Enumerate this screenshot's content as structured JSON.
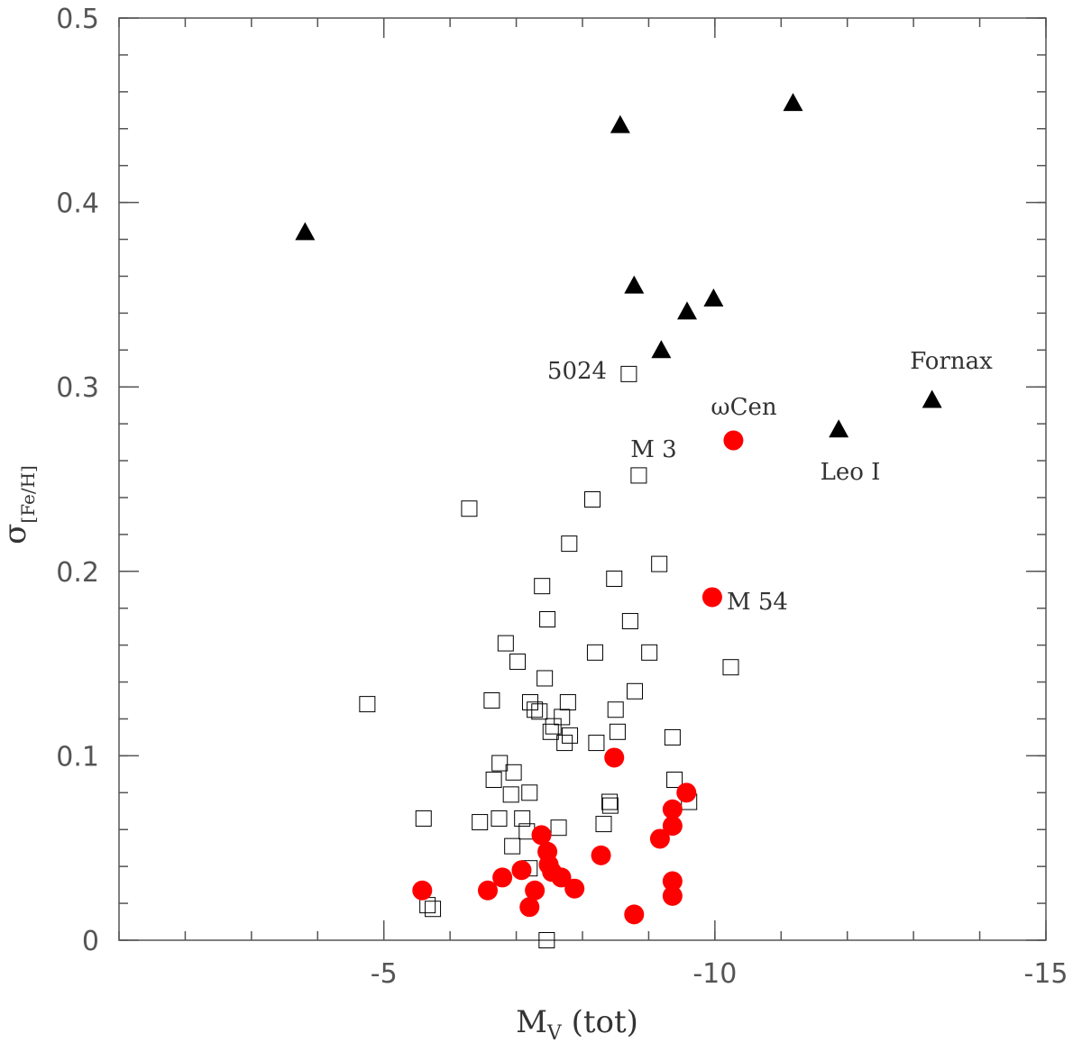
{
  "chart_data": {
    "type": "scatter",
    "x_label": [
      "M",
      "V",
      " (tot)"
    ],
    "y_label": [
      "σ",
      "[Fe/H]"
    ],
    "xlim": [
      -1,
      -15
    ],
    "ylim": [
      0,
      0.5
    ],
    "xticks": [
      -5,
      -10,
      -15
    ],
    "yticks": [
      0,
      0.1,
      0.2,
      0.3,
      0.4,
      0.5
    ],
    "series": [
      {
        "marker": "triangle",
        "color": "#000000",
        "x": [
          -3.81,
          -8.57,
          -11.18,
          -8.78,
          -9.98,
          -9.58,
          -9.19,
          -13.28,
          -11.87
        ],
        "values": [
          0.384,
          0.442,
          0.454,
          0.355,
          0.348,
          0.341,
          0.32,
          0.293,
          0.277
        ]
      },
      {
        "marker": "circle",
        "color": "#ff0000",
        "x": [
          -10.28,
          -9.96,
          -8.48,
          -5.58,
          -6.57,
          -6.79,
          -7.08,
          -7.2,
          -7.28,
          -7.38,
          -7.47,
          -7.49,
          -7.54,
          -7.68,
          -7.88,
          -8.28,
          -8.78,
          -9.17,
          -9.36,
          -9.36,
          -9.57,
          -9.36,
          -9.36
        ],
        "values": [
          0.271,
          0.186,
          0.099,
          0.027,
          0.027,
          0.034,
          0.038,
          0.018,
          0.027,
          0.057,
          0.048,
          0.041,
          0.037,
          0.034,
          0.028,
          0.046,
          0.014,
          0.055,
          0.062,
          0.071,
          0.08,
          0.032,
          0.024
        ]
      },
      {
        "marker": "square",
        "color": "#000000",
        "x": [
          -4.75,
          -5.6,
          -5.66,
          -5.74,
          -6.29,
          -6.45,
          -6.63,
          -6.66,
          -6.75,
          -6.74,
          -6.84,
          -6.92,
          -6.96,
          -6.94,
          -7.02,
          -7.09,
          -7.16,
          -7.2,
          -7.2,
          -7.21,
          -7.28,
          -7.35,
          -7.39,
          -7.43,
          -7.47,
          -7.46,
          -7.52,
          -7.56,
          -7.64,
          -7.69,
          -7.73,
          -7.78,
          -7.81,
          -7.8,
          -8.15,
          -8.19,
          -8.21,
          -8.32,
          -8.41,
          -8.42,
          -8.48,
          -8.5,
          -8.53,
          -8.7,
          -8.72,
          -8.79,
          -8.85,
          -9.01,
          -9.16,
          -9.36,
          -9.39,
          -9.61,
          -10.24
        ],
        "values": [
          0.128,
          0.066,
          0.019,
          0.017,
          0.234,
          0.064,
          0.13,
          0.087,
          0.096,
          0.066,
          0.161,
          0.079,
          0.091,
          0.051,
          0.151,
          0.066,
          0.059,
          0.08,
          0.039,
          0.129,
          0.125,
          0.124,
          0.192,
          0.142,
          0.174,
          0.0,
          0.113,
          0.116,
          0.061,
          0.121,
          0.107,
          0.129,
          0.111,
          0.215,
          0.239,
          0.156,
          0.107,
          0.063,
          0.075,
          0.073,
          0.196,
          0.125,
          0.113,
          0.307,
          0.173,
          0.135,
          0.252,
          0.156,
          0.204,
          0.11,
          0.087,
          0.075,
          0.148
        ]
      }
    ],
    "annotations": [
      "5024",
      "M 3",
      "ωCen",
      "Leo I",
      "Fornax",
      "M 54"
    ]
  }
}
